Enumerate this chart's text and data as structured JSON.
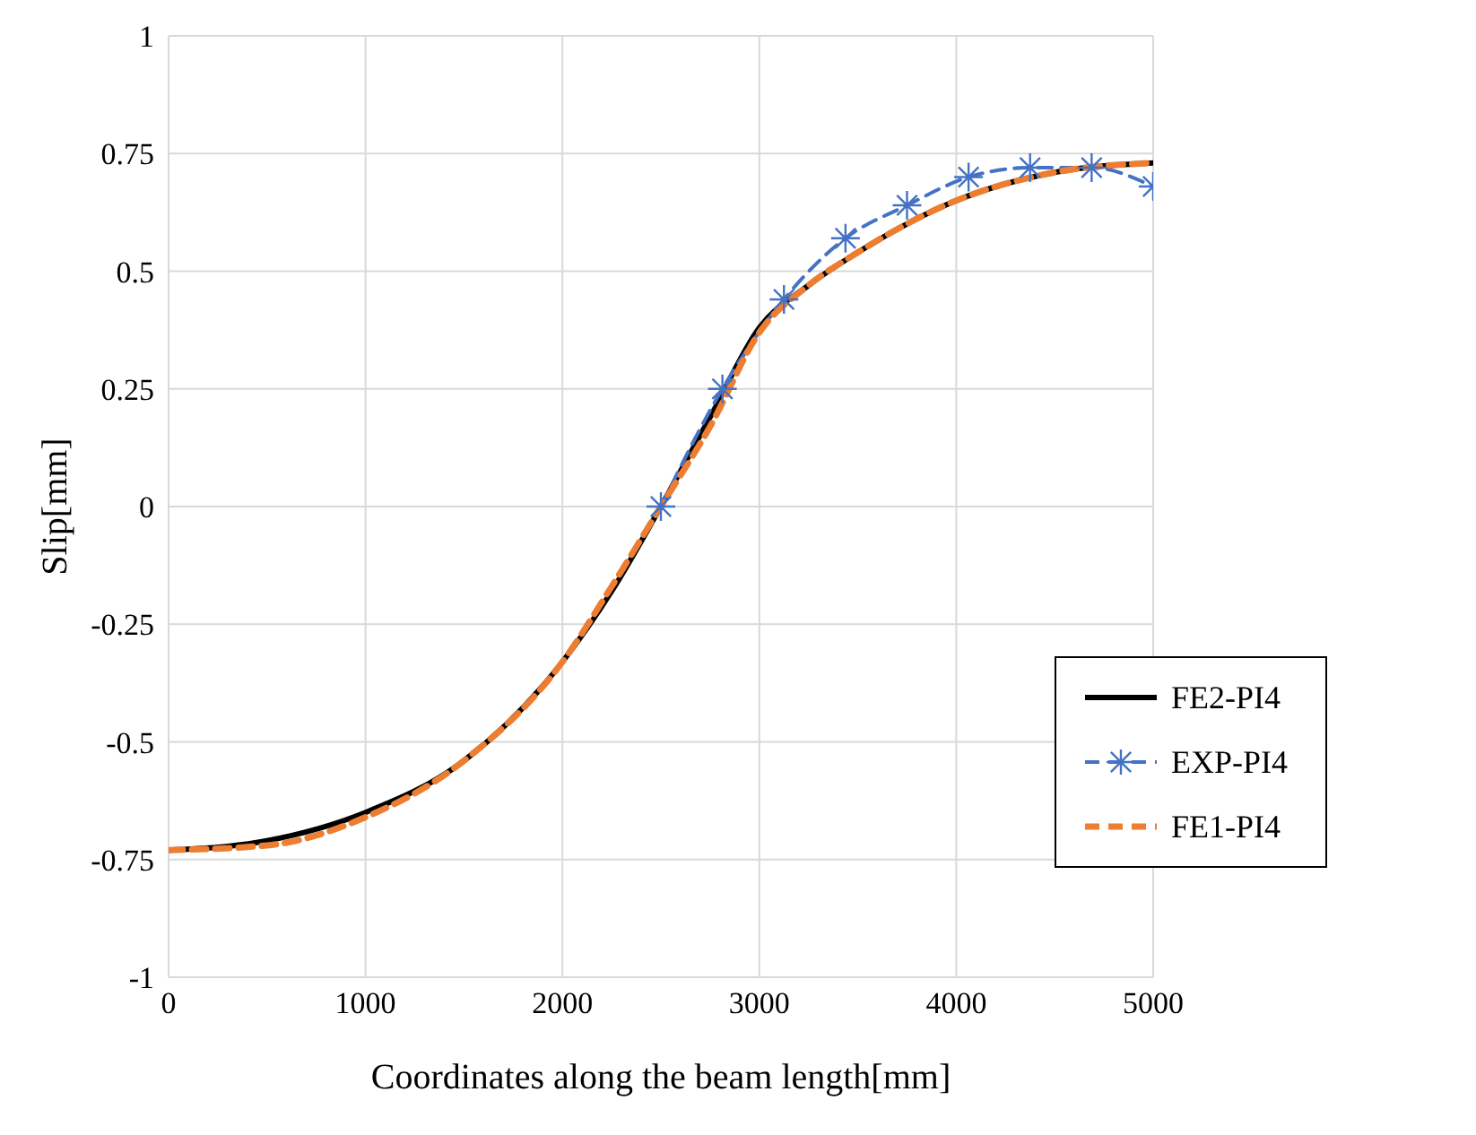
{
  "chart_data": {
    "type": "line",
    "xlabel": "Coordinates along the beam length[mm]",
    "ylabel": "Slip[mm]",
    "xlim": [
      0,
      5000
    ],
    "ylim": [
      -1,
      1
    ],
    "xticks": [
      0,
      1000,
      2000,
      3000,
      4000,
      5000
    ],
    "yticks": [
      -1,
      -0.75,
      -0.5,
      -0.25,
      0,
      0.25,
      0.5,
      0.75,
      1
    ],
    "grid": true,
    "legend": "right",
    "series": [
      {
        "name": "FE2-PI4",
        "color": "#000000",
        "line_style": "solid",
        "marker": "none",
        "x": [
          0,
          500,
          1000,
          1500,
          2000,
          2250,
          2500,
          2750,
          3000,
          3250,
          3500,
          4000,
          4500,
          5000
        ],
        "values": [
          -0.73,
          -0.71,
          -0.65,
          -0.54,
          -0.33,
          -0.18,
          0,
          0.19,
          0.38,
          0.47,
          0.54,
          0.65,
          0.71,
          0.73
        ]
      },
      {
        "name": "EXP-PI4",
        "color": "#4472c4",
        "line_style": "dashed",
        "marker": "cross",
        "x": [
          2500,
          2812.5,
          3125,
          3437.5,
          3750,
          4062.5,
          4375,
          4687.5,
          5000
        ],
        "values": [
          0,
          0.25,
          0.44,
          0.57,
          0.64,
          0.7,
          0.72,
          0.72,
          0.68
        ]
      },
      {
        "name": "FE1-PI4",
        "color": "#ed7d31",
        "line_style": "dashed",
        "marker": "none",
        "x": [
          0,
          500,
          1000,
          1500,
          2000,
          2250,
          2500,
          2750,
          3000,
          3250,
          3500,
          4000,
          4500,
          5000
        ],
        "values": [
          -0.73,
          -0.72,
          -0.66,
          -0.54,
          -0.33,
          -0.17,
          0,
          0.17,
          0.37,
          0.47,
          0.54,
          0.65,
          0.71,
          0.73
        ]
      }
    ]
  }
}
